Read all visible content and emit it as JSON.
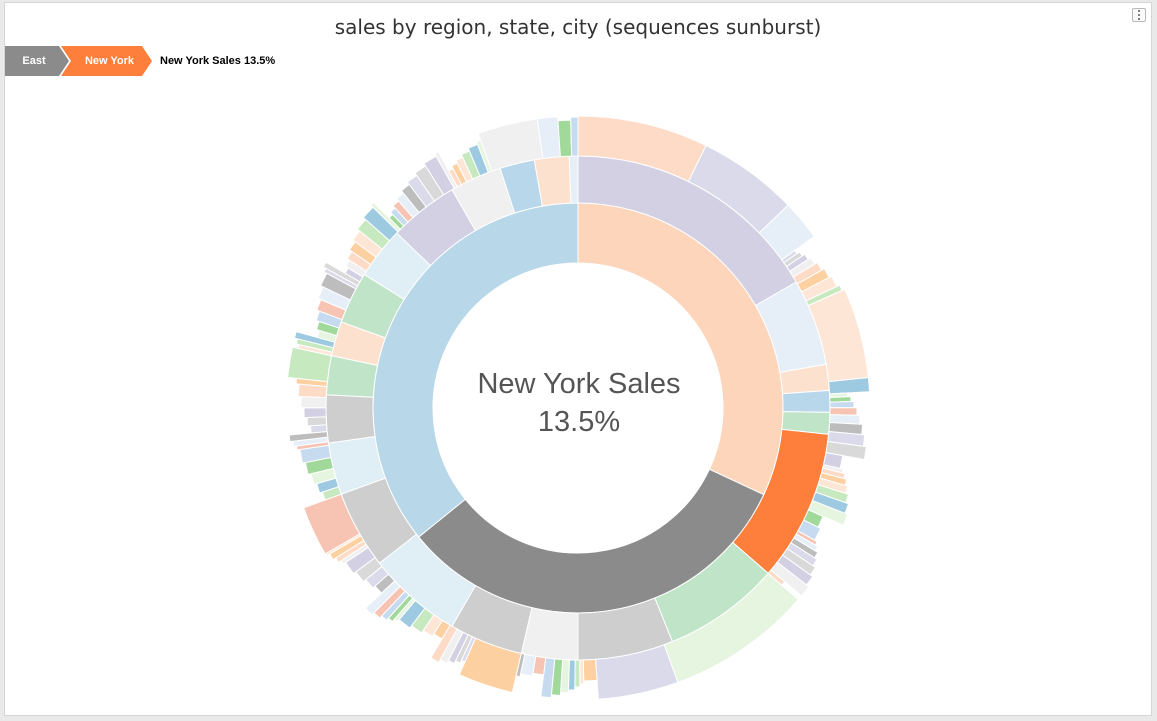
{
  "title": "sales by region, state, city (sequences sunburst)",
  "breadcrumb": {
    "items": [
      {
        "label": "East",
        "color": "#8b8b8b"
      },
      {
        "label": "New York",
        "color": "#fd7f3b"
      }
    ],
    "summary": "New York Sales 13.5%"
  },
  "center": {
    "label": "New York Sales",
    "value": "13.5%"
  },
  "chart_data": {
    "type": "sunburst",
    "levels": [
      "region",
      "state",
      "city"
    ],
    "highlighted_path": [
      "East",
      "New York"
    ],
    "highlighted_share_percent": 13.5,
    "colors": {
      "region": [
        "#fdd5ba",
        "#8b8b8b",
        "#b8d7e9"
      ],
      "state": [
        "#d3d0e4",
        "#e6eef8",
        "#fde1cf",
        "#b9d7ea",
        "#bfe4c7",
        "#fd7f3b",
        "#cecece",
        "#f0f0f0",
        "#e0eef6"
      ],
      "city": [
        "#fde6d6",
        "#fddbc7",
        "#d3d0e4",
        "#dadaeb",
        "#e6eef8",
        "#c6dbef",
        "#e5f5e0",
        "#c7e9c0",
        "#fdd0a2",
        "#f0f0f0",
        "#d9d9d9",
        "#bdbdbd",
        "#f7c4b3",
        "#a1d99b",
        "#9ecae1"
      ]
    }
  }
}
